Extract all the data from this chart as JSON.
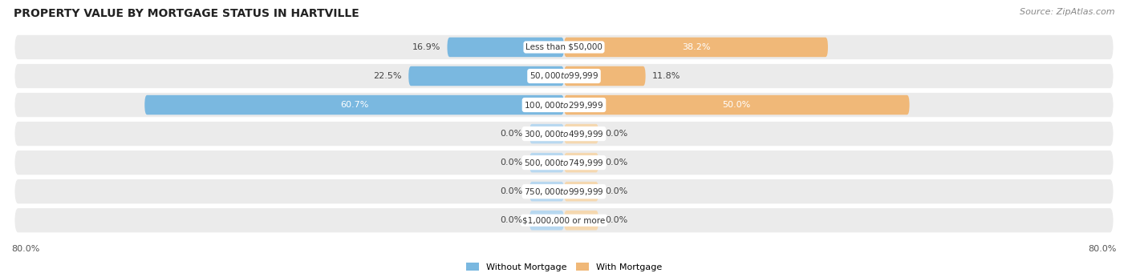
{
  "title": "PROPERTY VALUE BY MORTGAGE STATUS IN HARTVILLE",
  "source": "Source: ZipAtlas.com",
  "categories": [
    "Less than $50,000",
    "$50,000 to $99,999",
    "$100,000 to $299,999",
    "$300,000 to $499,999",
    "$500,000 to $749,999",
    "$750,000 to $999,999",
    "$1,000,000 or more"
  ],
  "without_mortgage": [
    16.9,
    22.5,
    60.7,
    0.0,
    0.0,
    0.0,
    0.0
  ],
  "with_mortgage": [
    38.2,
    11.8,
    50.0,
    0.0,
    0.0,
    0.0,
    0.0
  ],
  "color_without": "#7ab8e0",
  "color_with": "#f0b878",
  "color_without_zero": "#b8d8f0",
  "color_with_zero": "#f5d8b0",
  "bg_row_color": "#ebebeb",
  "bg_row_color_alt": "#f5f5f5",
  "xlim": 80.0,
  "zero_stub": 5.0,
  "legend_without": "Without Mortgage",
  "legend_with": "With Mortgage",
  "title_fontsize": 10,
  "source_fontsize": 8,
  "bar_label_fontsize": 8,
  "cat_label_fontsize": 7.5
}
